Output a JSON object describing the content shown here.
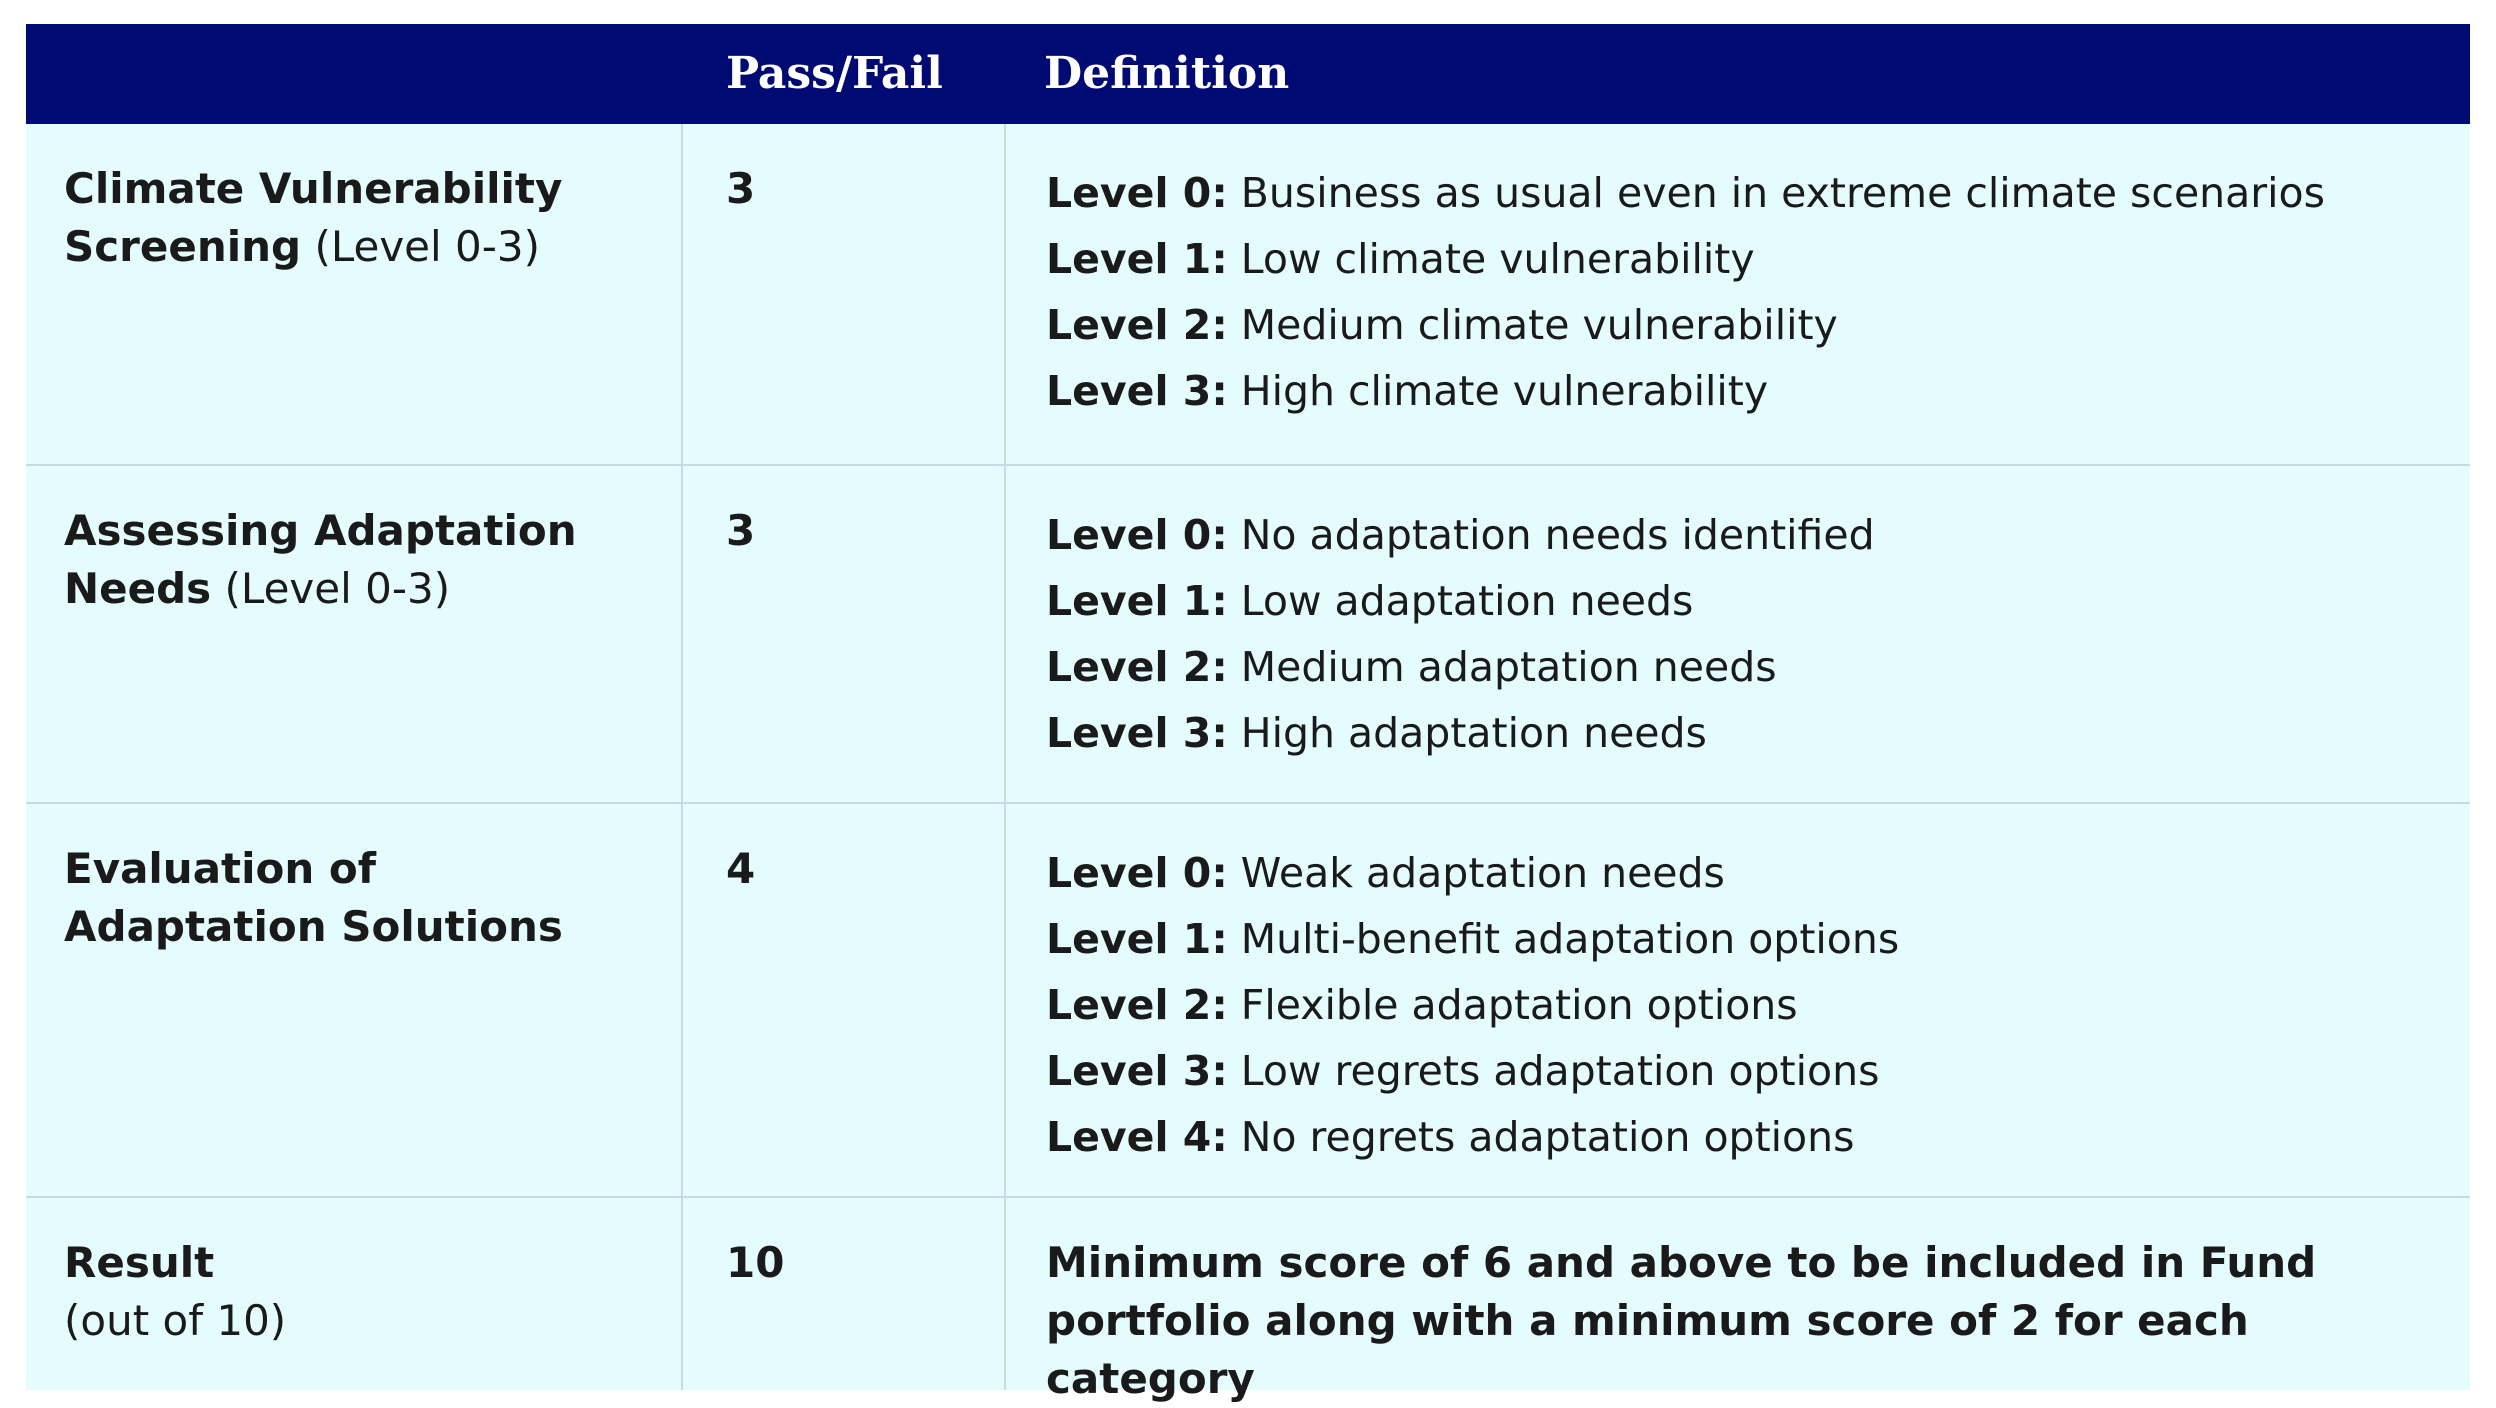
{
  "header": {
    "col1": "",
    "col2": "Pass/Fail",
    "col3": "Definition"
  },
  "rows": [
    {
      "criteria_bold": "Climate Vulnerability Screening",
      "criteria_normal": " (Level 0-3)",
      "score": "3",
      "levels": [
        {
          "label": "Level 0:",
          "text": " Business as usual even in extreme climate scenarios"
        },
        {
          "label": "Level 1:",
          "text": " Low climate vulnerability"
        },
        {
          "label": "Level 2:",
          "text": " Medium climate vulnerability"
        },
        {
          "label": "Level 3:",
          "text": " High climate vulnerability"
        }
      ]
    },
    {
      "criteria_bold": "Assessing Adaptation Needs",
      "criteria_normal": " (Level 0-3)",
      "score": "3",
      "levels": [
        {
          "label": "Level 0:",
          "text": " No adaptation needs identified"
        },
        {
          "label": "Level 1:",
          "text": " Low adaptation needs"
        },
        {
          "label": "Level 2:",
          "text": " Medium adaptation needs"
        },
        {
          "label": "Level 3:",
          "text": " High adaptation needs"
        }
      ]
    },
    {
      "criteria_bold": "Evaluation of Adaptation Solutions",
      "criteria_normal": "",
      "score": "4",
      "levels": [
        {
          "label": "Level 0:",
          "text": " Weak adaptation needs"
        },
        {
          "label": "Level 1:",
          "text": " Multi-benefit adaptation options"
        },
        {
          "label": "Level 2:",
          "text": " Flexible adaptation options"
        },
        {
          "label": "Level 3:",
          "text": " Low regrets adaptation options"
        },
        {
          "label": "Level 4:",
          "text": " No regrets adaptation options"
        }
      ]
    }
  ],
  "result": {
    "label": "Result",
    "sublabel": "(out of 10)",
    "score": "10",
    "text": "Minimum score of 6 and above to be included in Fund portfolio along with a minimum score of 2 for each category"
  }
}
